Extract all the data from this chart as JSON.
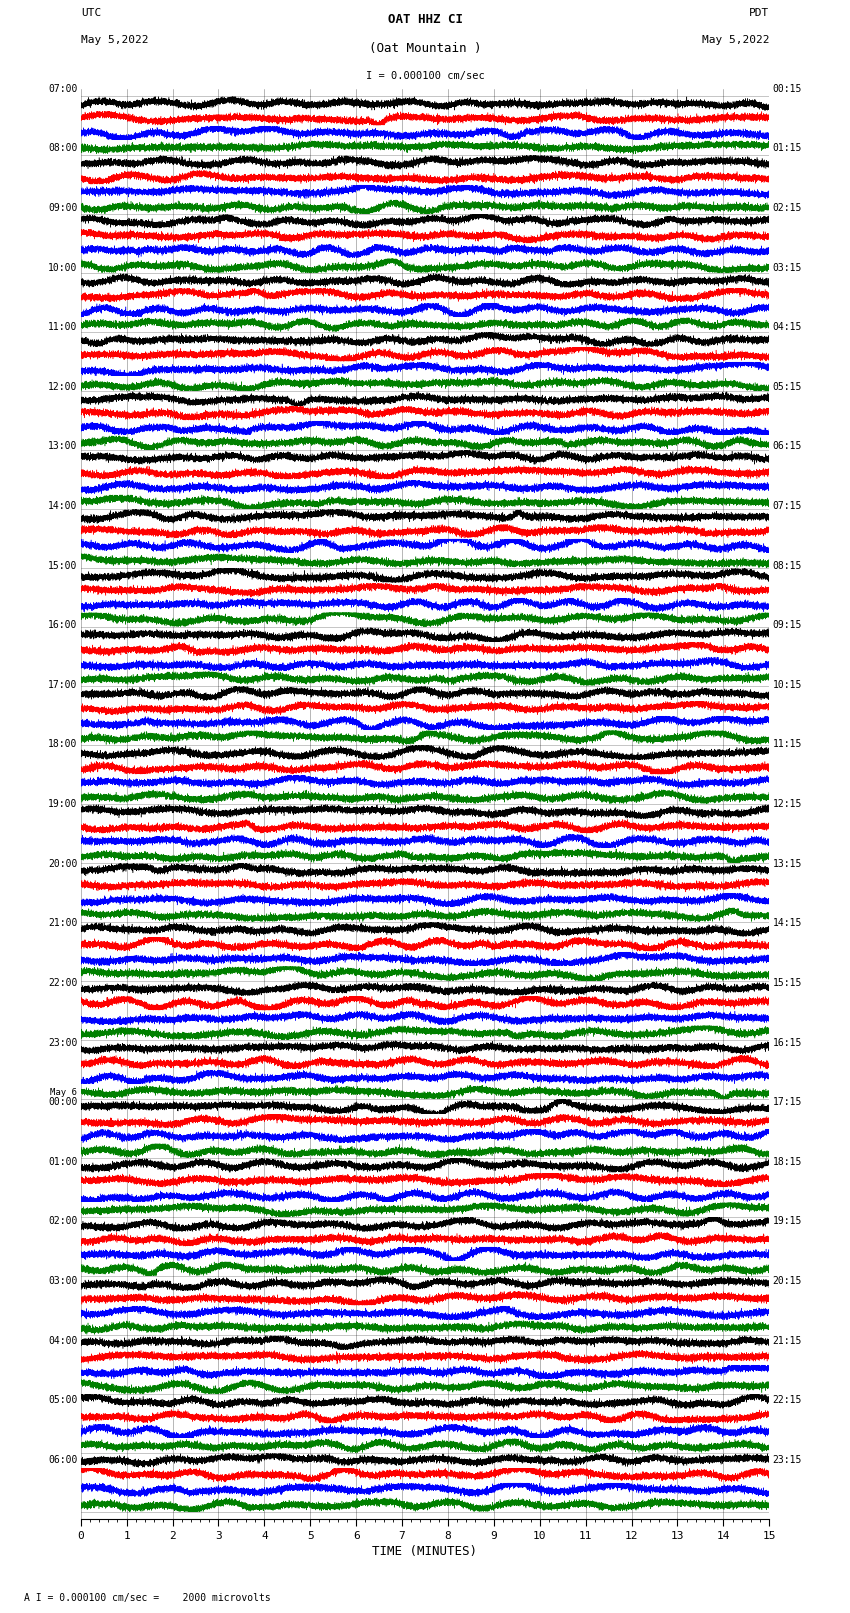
{
  "title_line1": "OAT HHZ CI",
  "title_line2": "(Oat Mountain )",
  "scale_label": "I = 0.000100 cm/sec",
  "bottom_label": "A I = 0.000100 cm/sec =    2000 microvolts",
  "xlabel": "TIME (MINUTES)",
  "utc_label": "UTC",
  "utc_date": "May 5,2022",
  "pdt_label": "PDT",
  "pdt_date": "May 5,2022",
  "left_times": [
    "07:00",
    "08:00",
    "09:00",
    "10:00",
    "11:00",
    "12:00",
    "13:00",
    "14:00",
    "15:00",
    "16:00",
    "17:00",
    "18:00",
    "19:00",
    "20:00",
    "21:00",
    "22:00",
    "23:00",
    "May 6\n00:00",
    "01:00",
    "02:00",
    "03:00",
    "04:00",
    "05:00",
    "06:00"
  ],
  "right_times": [
    "00:15",
    "01:15",
    "02:15",
    "03:15",
    "04:15",
    "05:15",
    "06:15",
    "07:15",
    "08:15",
    "09:15",
    "10:15",
    "11:15",
    "12:15",
    "13:15",
    "14:15",
    "15:15",
    "16:15",
    "17:15",
    "18:15",
    "19:15",
    "20:15",
    "21:15",
    "22:15",
    "23:15"
  ],
  "n_traces": 96,
  "n_hours": 24,
  "trace_colors": [
    "black",
    "red",
    "blue",
    "green"
  ],
  "bg_color": "white",
  "fig_width": 8.5,
  "fig_height": 16.13,
  "dpi": 100,
  "xmin": 0,
  "xmax": 15,
  "seed": 42
}
